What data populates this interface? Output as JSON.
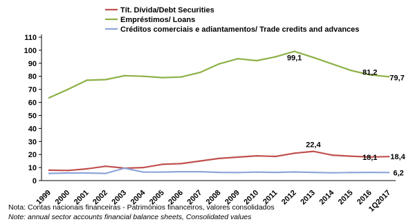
{
  "chart_data": {
    "type": "line",
    "title": "",
    "xlabel": "",
    "ylabel": "",
    "ylim": [
      0,
      110
    ],
    "yticks": [
      0,
      10,
      20,
      30,
      40,
      50,
      60,
      70,
      80,
      90,
      100,
      110
    ],
    "categories": [
      "1999",
      "2000",
      "2001",
      "2002",
      "2003",
      "2004",
      "2005",
      "2006",
      "2007",
      "2008",
      "2009",
      "2010",
      "2011",
      "2012",
      "2013",
      "2014",
      "2015",
      "2016",
      "1Q2017"
    ],
    "grid": false,
    "legend_position": "top-center",
    "series": [
      {
        "name": "Tít. Dívida/Debt Securities",
        "color": "#c0504d",
        "values": [
          8,
          7.8,
          9,
          11,
          9.5,
          10,
          12.5,
          13,
          15,
          17,
          18,
          19,
          18.5,
          21,
          22.4,
          19.5,
          18.7,
          18.1,
          18.4
        ]
      },
      {
        "name": "Empréstimos/ Loans",
        "color": "#8db046",
        "values": [
          63.5,
          70,
          77,
          77.5,
          80.5,
          80,
          79,
          79.5,
          83,
          89.5,
          93.5,
          92,
          95,
          99.1,
          94.5,
          89.5,
          84.5,
          81.2,
          79.7
        ]
      },
      {
        "name": "Créditos comerciais e adiantamentos/ Trade credits and advances",
        "color": "#8ea5d9",
        "values": [
          5.5,
          5.8,
          5.8,
          5.5,
          9.5,
          6.5,
          6.5,
          6.8,
          6.8,
          6.3,
          6.2,
          6.5,
          6.3,
          6.6,
          6.3,
          6,
          6.2,
          6.3,
          6.2
        ]
      }
    ],
    "annotations": [
      {
        "text": "99,1",
        "series": 1,
        "index": 13
      },
      {
        "text": "81,2",
        "series": 1,
        "index": 17
      },
      {
        "text": "79,7",
        "series": 1,
        "index": 18
      },
      {
        "text": "22,4",
        "series": 0,
        "index": 14
      },
      {
        "text": "18,1",
        "series": 0,
        "index": 17
      },
      {
        "text": "18,4",
        "series": 0,
        "index": 18
      },
      {
        "text": "6,2",
        "series": 2,
        "index": 18
      }
    ]
  },
  "notes": {
    "pt": "Nota: Contas nacionais financeiras - Patrimónios financeiros, valores consolidados",
    "en": "Note: annual sector accounts financial balance sheets, Consolidated values"
  }
}
